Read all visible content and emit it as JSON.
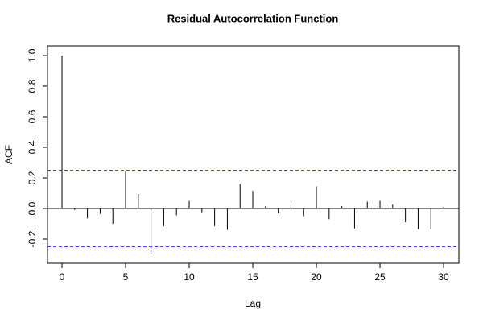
{
  "chart_data": {
    "type": "acf",
    "title": "Residual Autocorrelation Function",
    "x_label": "Lag",
    "y_label": "ACF",
    "x": [
      0,
      1,
      2,
      3,
      4,
      5,
      6,
      7,
      8,
      9,
      10,
      11,
      12,
      13,
      14,
      15,
      16,
      17,
      18,
      19,
      20,
      21,
      22,
      23,
      24,
      25,
      26,
      27,
      28,
      29,
      30
    ],
    "values": [
      1.0,
      -0.01,
      -0.065,
      -0.035,
      -0.1,
      0.24,
      0.095,
      -0.3,
      -0.115,
      -0.045,
      0.05,
      -0.025,
      -0.115,
      -0.14,
      0.16,
      0.115,
      0.015,
      -0.03,
      0.025,
      -0.05,
      0.145,
      -0.07,
      0.015,
      -0.13,
      0.045,
      0.05,
      0.025,
      -0.09,
      -0.135,
      -0.135,
      0.01
    ],
    "color": "#000000",
    "ci": [
      -0.25,
      0.25
    ],
    "ci_color": "#4040ff",
    "xlim": [
      -1.14,
      31.2
    ],
    "ylim": [
      -0.358,
      1.063
    ],
    "xticks": [
      0,
      5,
      10,
      15,
      20,
      25,
      30
    ],
    "yticks": [
      -0.2,
      {
        "value": 0,
        "label": "0.0"
      },
      0.2,
      0.4,
      0.6,
      0.8,
      {
        "value": 1,
        "label": "1.0"
      }
    ]
  }
}
